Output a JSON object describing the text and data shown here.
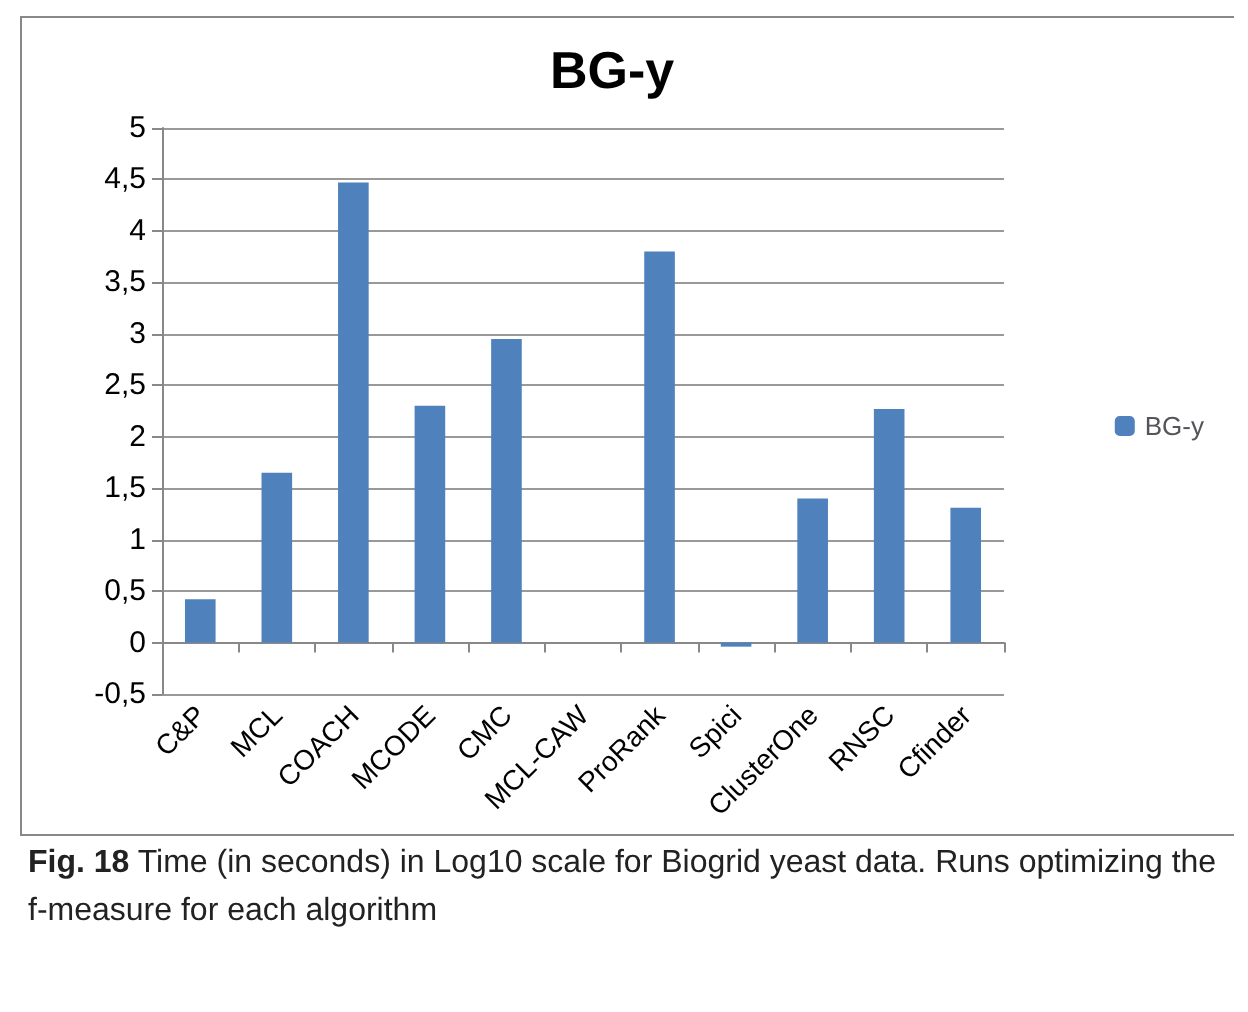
{
  "chart_data": {
    "type": "bar",
    "title": "BG-y",
    "categories": [
      "C&P",
      "MCL",
      "COACH",
      "MCODE",
      "CMC",
      "MCL-CAW",
      "ProRank",
      "Spici",
      "ClusterOne",
      "RNSC",
      "Cfinder"
    ],
    "series": [
      {
        "name": "BG-y",
        "color": "#4f81bd",
        "values": [
          0.42,
          1.65,
          4.47,
          2.3,
          2.95,
          0,
          3.8,
          -0.04,
          1.4,
          2.27,
          1.31
        ]
      }
    ],
    "ylim": [
      -0.5,
      5
    ],
    "yticks": [
      {
        "value": -0.5,
        "label": "-0,5"
      },
      0,
      {
        "value": 0.5,
        "label": "0,5"
      },
      1,
      {
        "value": 1.5,
        "label": "1,5"
      },
      2,
      {
        "value": 2.5,
        "label": "2,5"
      },
      3,
      {
        "value": 3.5,
        "label": "3,5"
      },
      4,
      {
        "value": 4.5,
        "label": "4,5"
      },
      5
    ],
    "grid": "y",
    "legend": "right",
    "annotations": [
      "Fig. 18 Time (in seconds) in Log10 scale for Biogrid yeast data. Runs optimizing the f-measure for each algorithm"
    ]
  }
}
